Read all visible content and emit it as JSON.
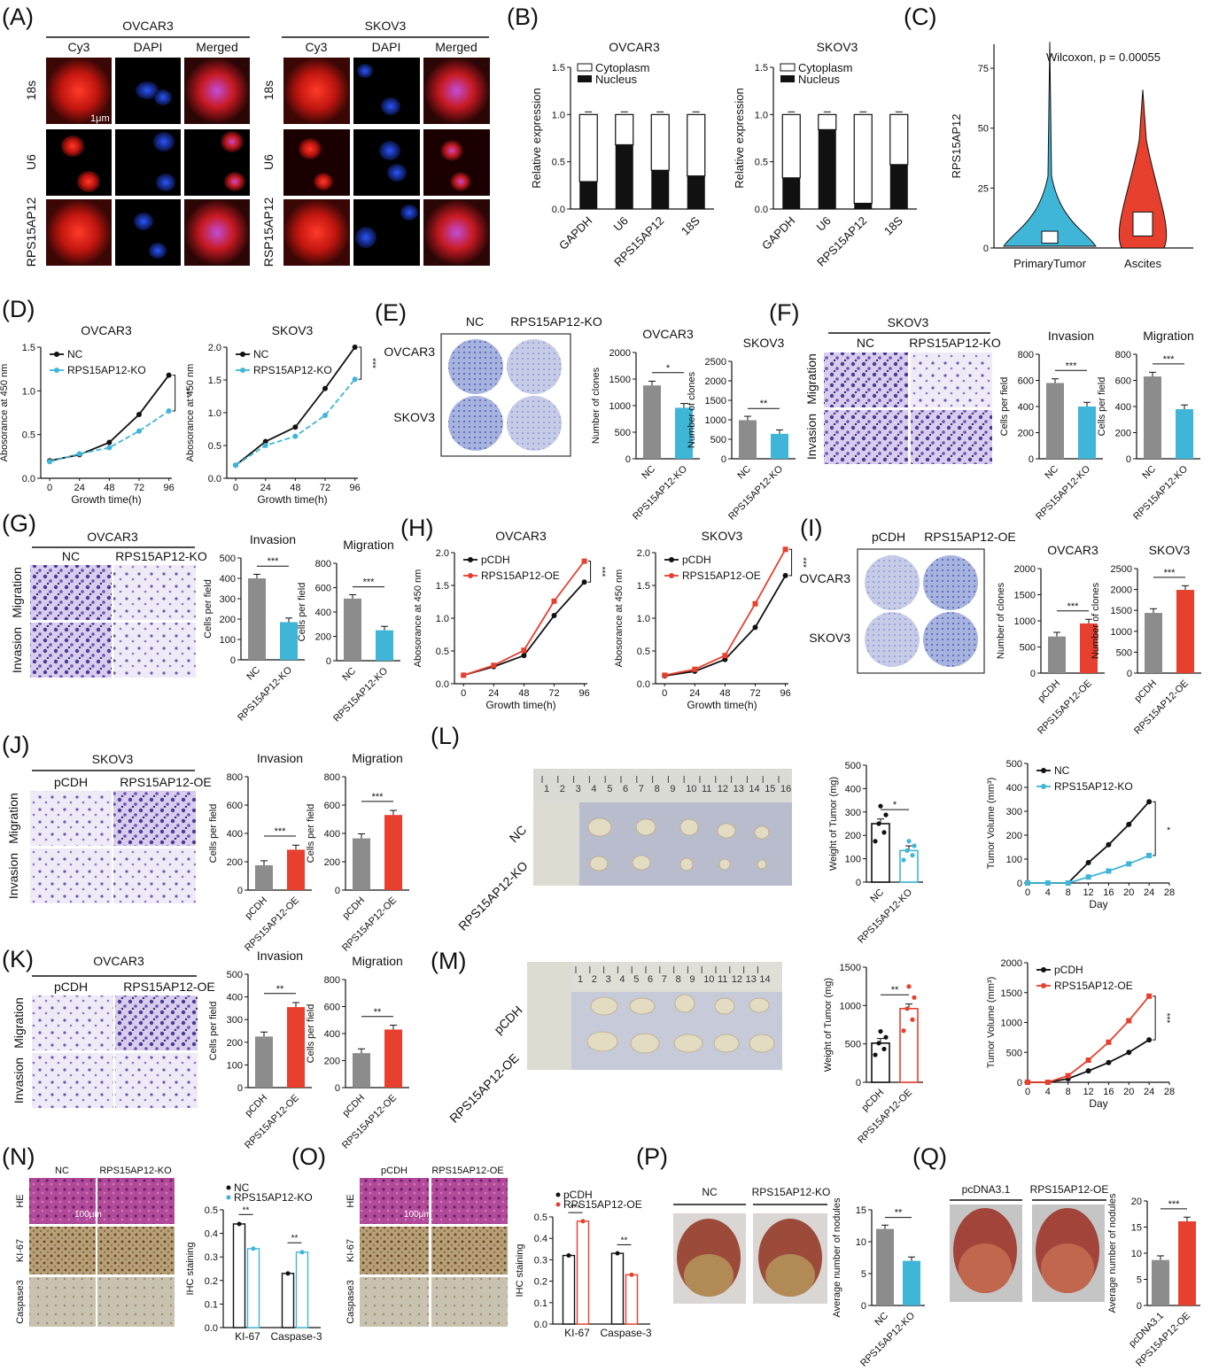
{
  "colors": {
    "blue": "#3fb6d8",
    "red": "#e8402e",
    "gray": "#8c8c8c",
    "black": "#111111",
    "orange_line": "#e8402e"
  },
  "A": {
    "label": "(A)",
    "cell1": "OVCAR3",
    "cell2": "SKOV3",
    "cols": [
      "Cy3",
      "DAPI",
      "Merged"
    ],
    "rows1": [
      "18s",
      "U6",
      "RPS15AP12"
    ],
    "rows2": [
      "18s",
      "U6",
      "RSP15AP12"
    ],
    "scale": "1μm"
  },
  "B": {
    "label": "(B)",
    "charts": [
      {
        "title": "OVCAR3",
        "ylabel": "Relative expression",
        "ylim": [
          0,
          1.5
        ],
        "yticks": [
          "0.0",
          "0.5",
          "1.0",
          "1.5"
        ],
        "legend": [
          "Cytoplasm",
          "Nucleus"
        ],
        "categories": [
          "GAPDH",
          "U6",
          "RPS15AP12",
          "18S"
        ],
        "nucleus": [
          0.29,
          0.68,
          0.41,
          0.35
        ]
      },
      {
        "title": "SKOV3",
        "ylabel": "Relative expression",
        "ylim": [
          0,
          1.5
        ],
        "yticks": [
          "0.0",
          "0.5",
          "1.0",
          "1.5"
        ],
        "legend": [
          "Cytoplasm",
          "Nucleus"
        ],
        "categories": [
          "GAPDH",
          "U6",
          "RPS15AP12",
          "18S"
        ],
        "nucleus": [
          0.33,
          0.84,
          0.06,
          0.47
        ]
      }
    ]
  },
  "C": {
    "label": "(C)",
    "ylabel": "RPS15AP12",
    "stat": "Wilcoxon, p = 0.00055",
    "groups": [
      "PrimaryTumor",
      "Ascites"
    ],
    "yticks": [
      "0",
      "25",
      "50",
      "75"
    ],
    "ylim": [
      0,
      85
    ]
  },
  "D": {
    "label": "(D)",
    "charts": [
      {
        "title": "OVCAR3",
        "ylabel": "Abosorance  at 450 nm",
        "xlabel": "Growth time(h)",
        "x": [
          "0",
          "24",
          "48",
          "72",
          "96"
        ],
        "yticks": [
          "0.0",
          "0.5",
          "1.0",
          "1.5"
        ],
        "ylim": [
          0,
          1.5
        ],
        "series": [
          {
            "name": "NC",
            "values": [
              0.2,
              0.27,
              0.41,
              0.73,
              1.18
            ]
          },
          {
            "name": "RPS15AP12-KO",
            "values": [
              0.19,
              0.28,
              0.35,
              0.54,
              0.77
            ]
          }
        ],
        "sig": "***"
      },
      {
        "title": "SKOV3",
        "ylabel": "Abosorance  at 450 nm",
        "xlabel": "Growth time(h)",
        "x": [
          "0",
          "24",
          "48",
          "72",
          "96"
        ],
        "yticks": [
          "0.0",
          "0.5",
          "1.0",
          "1.5",
          "2.0"
        ],
        "ylim": [
          0,
          2
        ],
        "series": [
          {
            "name": "NC",
            "values": [
              0.2,
              0.56,
              0.78,
              1.37,
              2.0
            ]
          },
          {
            "name": "RPS15AP12-KO",
            "values": [
              0.2,
              0.5,
              0.64,
              0.96,
              1.51
            ]
          }
        ],
        "sig": "***"
      }
    ]
  },
  "E": {
    "label": "(E)",
    "plate_cols": [
      "NC",
      "RPS15AP12-KO"
    ],
    "plate_rows": [
      "OVCAR3",
      "SKOV3"
    ],
    "charts": [
      {
        "title": "OVCAR3",
        "ylabel": "Number of clones",
        "yticks": [
          "0",
          "500",
          "1000",
          "1500",
          "2000"
        ],
        "ylim": [
          0,
          2000
        ],
        "categories": [
          "NC",
          "RPS15AP12-KO"
        ],
        "values": [
          1380,
          960
        ],
        "sig": "*"
      },
      {
        "title": "SKOV3",
        "ylabel": "Number of clones",
        "yticks": [
          "0",
          "500",
          "1000",
          "1500",
          "2000",
          "2500"
        ],
        "ylim": [
          0,
          2500
        ],
        "categories": [
          "NC",
          "RPS15AP12-KO"
        ],
        "values": [
          990,
          640
        ],
        "sig": "**"
      }
    ]
  },
  "F": {
    "label": "(F)",
    "cell": "SKOV3",
    "cols": [
      "NC",
      "RPS15AP12-KO"
    ],
    "rows": [
      "Migration",
      "Invasion"
    ],
    "charts": [
      {
        "title": "Invasion",
        "ylabel": "Cells per field",
        "yticks": [
          "0",
          "200",
          "400",
          "600",
          "800"
        ],
        "ylim": [
          0,
          800
        ],
        "categories": [
          "NC",
          "RPS15AP12-KO"
        ],
        "values": [
          580,
          400
        ],
        "sig": "***"
      },
      {
        "title": "Migration",
        "ylabel": "Cells per field",
        "yticks": [
          "0",
          "200",
          "400",
          "600",
          "800"
        ],
        "ylim": [
          0,
          800
        ],
        "categories": [
          "NC",
          "RPS15AP12-KO"
        ],
        "values": [
          630,
          380
        ],
        "sig": "***"
      }
    ]
  },
  "G": {
    "label": "(G)",
    "cell": "OVCAR3",
    "cols": [
      "NC",
      "RPS15AP12-KO"
    ],
    "rows": [
      "Migration",
      "Invasion"
    ],
    "charts": [
      {
        "title": "Invasion",
        "ylabel": "Cells per field",
        "yticks": [
          "0",
          "100",
          "200",
          "300",
          "400",
          "500"
        ],
        "ylim": [
          0,
          500
        ],
        "categories": [
          "NC",
          "RPS15AP12-KO"
        ],
        "values": [
          400,
          185
        ],
        "sig": "***"
      },
      {
        "title": "Migration",
        "ylabel": "Cells per field",
        "yticks": [
          "0",
          "200",
          "400",
          "600",
          "800"
        ],
        "ylim": [
          0,
          800
        ],
        "categories": [
          "NC",
          "RPS15AP12-KO"
        ],
        "values": [
          510,
          250
        ],
        "sig": "***"
      }
    ]
  },
  "H": {
    "label": "(H)",
    "charts": [
      {
        "title": "OVCAR3",
        "ylabel": "Abosorance  at 450 nm",
        "xlabel": "Growth time(h)",
        "x": [
          "0",
          "24",
          "48",
          "72",
          "96"
        ],
        "yticks": [
          "0.0",
          "0.5",
          "1.0",
          "1.5",
          "2.0"
        ],
        "ylim": [
          0,
          2
        ],
        "series": [
          {
            "name": "pCDH",
            "values": [
              0.13,
              0.26,
              0.43,
              1.04,
              1.55
            ]
          },
          {
            "name": "RPS15AP12-OE",
            "values": [
              0.13,
              0.28,
              0.51,
              1.26,
              1.87
            ]
          }
        ],
        "sig": "***"
      },
      {
        "title": "SKOV3",
        "ylabel": "Abosorance  at 450 nm",
        "xlabel": "Growth time(h)",
        "x": [
          "0",
          "24",
          "48",
          "72",
          "96"
        ],
        "yticks": [
          "0.0",
          "0.5",
          "1.0",
          "1.5",
          "2.0"
        ],
        "ylim": [
          0,
          2
        ],
        "series": [
          {
            "name": "pCDH",
            "values": [
              0.12,
              0.19,
              0.37,
              0.86,
              1.65
            ]
          },
          {
            "name": "RPS15AP12-OE",
            "values": [
              0.13,
              0.22,
              0.43,
              1.22,
              2.05
            ]
          }
        ],
        "sig": "***"
      }
    ]
  },
  "I": {
    "label": "(I)",
    "plate_cols": [
      "pCDH",
      "RPS15AP12-OE"
    ],
    "plate_rows": [
      "OVCAR3",
      "SKOV3"
    ],
    "charts": [
      {
        "title": "OVCAR3",
        "ylabel": "Number of clones",
        "yticks": [
          "0",
          "500",
          "1000",
          "1500",
          "2000"
        ],
        "ylim": [
          0,
          2000
        ],
        "categories": [
          "pCDH",
          "RPS15AP12-OE"
        ],
        "values": [
          700,
          950
        ],
        "sig": "***"
      },
      {
        "title": "SKOV3",
        "ylabel": "Number of clones",
        "yticks": [
          "0",
          "500",
          "1000",
          "1500",
          "2000",
          "2500"
        ],
        "ylim": [
          0,
          2500
        ],
        "categories": [
          "pCDH",
          "RPS15AP12-OE"
        ],
        "values": [
          1440,
          1990
        ],
        "sig": "***"
      }
    ]
  },
  "J": {
    "label": "(J)",
    "cell": "SKOV3",
    "cols": [
      "pCDH",
      "RPS15AP12-OE"
    ],
    "rows": [
      "Migration",
      "Invasion"
    ],
    "charts": [
      {
        "title": "Invasion",
        "ylabel": "Cells per field",
        "yticks": [
          "0",
          "200",
          "400",
          "600",
          "800"
        ],
        "ylim": [
          0,
          800
        ],
        "categories": [
          "pCDH",
          "RPS15AP12-OE"
        ],
        "values": [
          175,
          285
        ],
        "sig": "***"
      },
      {
        "title": "Migration",
        "ylabel": "Cells per field",
        "yticks": [
          "0",
          "200",
          "400",
          "600",
          "800"
        ],
        "ylim": [
          0,
          800
        ],
        "categories": [
          "pCDH",
          "RPS15AP12-OE"
        ],
        "values": [
          365,
          530
        ],
        "sig": "***"
      }
    ]
  },
  "K": {
    "label": "(K)",
    "cell": "OVCAR3",
    "cols": [
      "pCDH",
      "RPS15AP12-OE"
    ],
    "rows": [
      "Migration",
      "Invasion"
    ],
    "charts": [
      {
        "title": "Invasion",
        "ylabel": "Cells per field",
        "yticks": [
          "0",
          "100",
          "200",
          "300",
          "400",
          "500"
        ],
        "ylim": [
          0,
          500
        ],
        "categories": [
          "pCDH",
          "RPS15AP12-OE"
        ],
        "values": [
          225,
          355
        ],
        "sig": "**"
      },
      {
        "title": "Migration",
        "ylabel": "Cells per field",
        "yticks": [
          "0",
          "200",
          "400",
          "600",
          "800"
        ],
        "ylim": [
          0,
          800
        ],
        "categories": [
          "pCDH",
          "RPS15AP12-OE"
        ],
        "values": [
          255,
          430
        ],
        "sig": "**"
      }
    ]
  },
  "L": {
    "label": "(L)",
    "rows": [
      "NC",
      "RPS15AP12-KO"
    ],
    "ruler": [
      "1",
      "2",
      "3",
      "4",
      "5",
      "6",
      "7",
      "8",
      "9",
      "10",
      "11",
      "12",
      "13",
      "14",
      "15",
      "16"
    ],
    "weight": {
      "ylabel": "Weight of Tumor (mg)",
      "yticks": [
        "0",
        "100",
        "200",
        "300",
        "400",
        "500"
      ],
      "ylim": [
        0,
        500
      ],
      "categories": [
        "NC",
        "RPS15AP12-KO"
      ],
      "values": [
        250,
        135
      ],
      "sig": "*"
    },
    "volume": {
      "ylabel": "Tumor Volume (mm³)",
      "xlabel": "Day",
      "x": [
        "0",
        "4",
        "8",
        "12",
        "16",
        "20",
        "24",
        "28"
      ],
      "yticks": [
        "0",
        "100",
        "200",
        "300",
        "400",
        "500"
      ],
      "ylim": [
        0,
        500
      ],
      "series": [
        {
          "name": "NC",
          "values": [
            0,
            0,
            0,
            85,
            160,
            245,
            340
          ]
        },
        {
          "name": "RPS15AP12-KO",
          "values": [
            0,
            0,
            0,
            25,
            50,
            80,
            115
          ]
        }
      ],
      "sig": "*"
    }
  },
  "M": {
    "label": "(M)",
    "rows": [
      "pCDH",
      "RPS15AP12-OE"
    ],
    "ruler": [
      "1",
      "2",
      "3",
      "4",
      "5",
      "6",
      "7",
      "8",
      "9",
      "10",
      "11",
      "12",
      "13",
      "14"
    ],
    "weight": {
      "ylabel": "Weight of Tumor (mg)",
      "yticks": [
        "0",
        "500",
        "1000",
        "1500"
      ],
      "ylim": [
        0,
        1500
      ],
      "categories": [
        "pCDH",
        "RPS15AP12-OE"
      ],
      "values": [
        510,
        960
      ],
      "sig": "**"
    },
    "volume": {
      "ylabel": "Tumor Volume (mm³)",
      "xlabel": "Day",
      "x": [
        "0",
        "4",
        "8",
        "12",
        "16",
        "20",
        "24",
        "28"
      ],
      "yticks": [
        "0",
        "500",
        "1000",
        "1500",
        "2000"
      ],
      "ylim": [
        0,
        2000
      ],
      "series": [
        {
          "name": "pCDH",
          "values": [
            0,
            0,
            60,
            190,
            330,
            500,
            710
          ]
        },
        {
          "name": "RPS15AP12-OE",
          "values": [
            0,
            0,
            110,
            370,
            670,
            1030,
            1440
          ]
        }
      ],
      "sig": "***"
    }
  },
  "N": {
    "label": "(N)",
    "cols": [
      "NC",
      "RPS15AP12-KO"
    ],
    "rows": [
      "HE",
      "KI-67",
      "Caspase3"
    ],
    "scale": "100μm",
    "chart": {
      "ylabel": "IHC staining",
      "yticks": [
        "0.0",
        "0.1",
        "0.2",
        "0.3",
        "0.4",
        "0.5"
      ],
      "ylim": [
        0,
        0.5
      ],
      "categories": [
        "KI-67",
        "Caspase-3"
      ],
      "series": [
        {
          "name": "NC",
          "values": [
            0.44,
            0.23
          ]
        },
        {
          "name": "RPS15AP12-KO",
          "values": [
            0.335,
            0.32
          ]
        }
      ],
      "sig": [
        "**",
        "**"
      ]
    }
  },
  "O": {
    "label": "(O)",
    "cols": [
      "pCDH",
      "RPS15AP12-OE"
    ],
    "rows": [
      "HE",
      "KI-67",
      "Caspase3"
    ],
    "scale": "100μm",
    "chart": {
      "ylabel": "IHC staining",
      "yticks": [
        "0.0",
        "0.1",
        "0.2",
        "0.3",
        "0.4",
        "0.5"
      ],
      "ylim": [
        0,
        0.5
      ],
      "categories": [
        "KI-67",
        "Caspase-3"
      ],
      "series": [
        {
          "name": "pCDH",
          "values": [
            0.32,
            0.33
          ]
        },
        {
          "name": "RPS15AP12-OE",
          "values": [
            0.48,
            0.23
          ]
        }
      ],
      "sig": [
        "***",
        "**"
      ]
    }
  },
  "P": {
    "label": "(P)",
    "cols": [
      "NC",
      "RPS15AP12-KO"
    ],
    "chart": {
      "ylabel": "Average number of nodules",
      "yticks": [
        "0",
        "5",
        "10",
        "15"
      ],
      "ylim": [
        0,
        15
      ],
      "categories": [
        "NC",
        "RPS15AP12-KO"
      ],
      "values": [
        12,
        7
      ],
      "sig": "**"
    }
  },
  "Q": {
    "label": "(Q)",
    "cols": [
      "pcDNA3.1",
      "RPS15AP12-OE"
    ],
    "chart": {
      "ylabel": "Average number of nodules",
      "yticks": [
        "0",
        "5",
        "10",
        "15",
        "20"
      ],
      "ylim": [
        0,
        20
      ],
      "categories": [
        "pcDNA3.1",
        "RPS15AP12-OE"
      ],
      "values": [
        8.7,
        16.1
      ],
      "sig": "***"
    }
  }
}
